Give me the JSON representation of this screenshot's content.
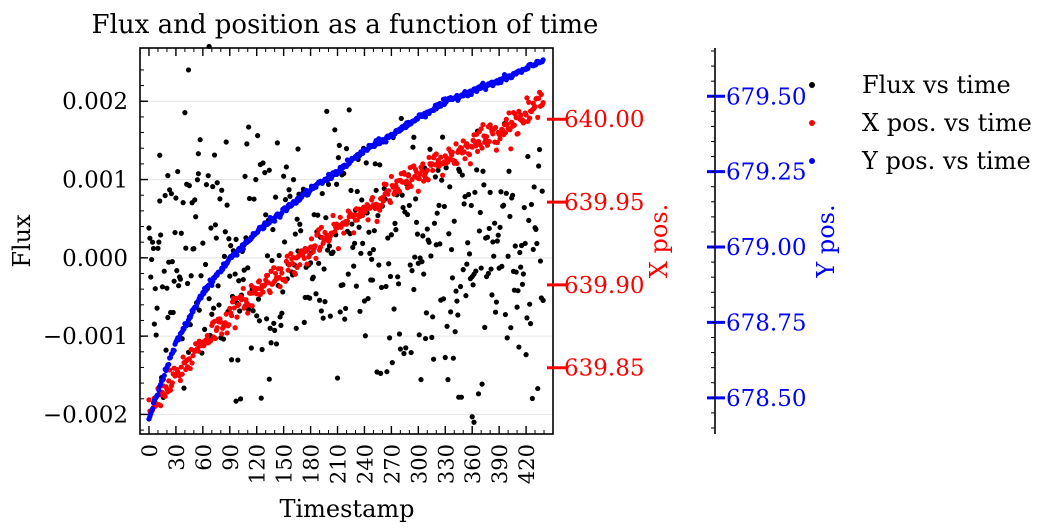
{
  "chart_data": {
    "type": "scatter",
    "title": "Flux and position as a function of time",
    "xlabel": "Timestamp",
    "xlim": [
      -10,
      450
    ],
    "x_ticks": [
      0,
      30,
      60,
      90,
      120,
      150,
      180,
      210,
      240,
      270,
      300,
      330,
      360,
      390,
      420
    ],
    "x_tick_labels": [
      "0",
      "30",
      "60",
      "90",
      "120",
      "150",
      "180",
      "210",
      "240",
      "270",
      "300",
      "330",
      "360",
      "390",
      "420"
    ],
    "axes": {
      "flux": {
        "label": "Flux",
        "color": "#000000",
        "ylim": [
          -0.00225,
          0.00268
        ],
        "ticks": [
          -0.002,
          -0.001,
          0.0,
          0.001,
          0.002
        ],
        "tick_labels": [
          "−0.002",
          "−0.001",
          "0.000",
          "0.001",
          "0.002"
        ]
      },
      "x_pos": {
        "label": "X pos.",
        "color": "#ff0000",
        "ylim": [
          639.81,
          640.043
        ],
        "ticks": [
          639.85,
          639.9,
          639.95,
          640.0
        ],
        "tick_labels": [
          "639.85",
          "639.90",
          "639.95",
          "640.00"
        ]
      },
      "y_pos": {
        "label": "Y pos.",
        "color": "#0000ff",
        "ylim": [
          678.38,
          679.66
        ],
        "ticks": [
          678.5,
          678.75,
          679.0,
          679.25,
          679.5
        ],
        "tick_labels": [
          "678.50",
          "678.75",
          "679.00",
          "679.25",
          "679.50"
        ]
      }
    },
    "grid": true,
    "legend_position": "right",
    "series": [
      {
        "name": "Flux vs time",
        "axis": "flux",
        "color": "#000000",
        "n_points": 440,
        "x_range": [
          0,
          439
        ],
        "mean": 0.0,
        "std": 0.0008,
        "outliers": [
          {
            "x": 12,
            "y": 0.00131
          },
          {
            "x": 21,
            "y": 0.00105
          },
          {
            "x": 44,
            "y": 0.0024
          },
          {
            "x": 55,
            "y": 0.00133
          },
          {
            "x": 67,
            "y": 0.0027
          },
          {
            "x": 97,
            "y": -0.00183
          },
          {
            "x": 111,
            "y": 0.00167
          },
          {
            "x": 134,
            "y": -0.00155
          },
          {
            "x": 166,
            "y": 0.00139
          },
          {
            "x": 295,
            "y": 0.00154
          },
          {
            "x": 360,
            "y": -0.00203
          },
          {
            "x": 362,
            "y": -0.0021
          },
          {
            "x": 345,
            "y": -0.00178
          }
        ]
      },
      {
        "name": "X pos. vs time",
        "axis": "x_pos",
        "color": "#ff0000",
        "n_points": 440,
        "x_range": [
          0,
          439
        ],
        "trend": [
          [
            0,
            639.823
          ],
          [
            60,
            639.866
          ],
          [
            120,
            639.897
          ],
          [
            180,
            639.921
          ],
          [
            240,
            639.946
          ],
          [
            300,
            639.967
          ],
          [
            360,
            639.985
          ],
          [
            420,
            640.002
          ],
          [
            439,
            640.011
          ]
        ],
        "scatter": 0.005
      },
      {
        "name": "Y pos. vs time",
        "axis": "y_pos",
        "color": "#0000ff",
        "n_points": 440,
        "x_range": [
          0,
          439
        ],
        "trend": [
          [
            0,
            678.44
          ],
          [
            30,
            678.68
          ],
          [
            60,
            678.85
          ],
          [
            90,
            678.96
          ],
          [
            120,
            679.05
          ],
          [
            150,
            679.12
          ],
          [
            180,
            679.19
          ],
          [
            210,
            679.25
          ],
          [
            240,
            679.32
          ],
          [
            270,
            679.37
          ],
          [
            300,
            679.43
          ],
          [
            330,
            679.48
          ],
          [
            360,
            679.52
          ],
          [
            390,
            679.55
          ],
          [
            420,
            679.59
          ],
          [
            439,
            679.62
          ]
        ],
        "scatter": 0.006
      }
    ]
  }
}
